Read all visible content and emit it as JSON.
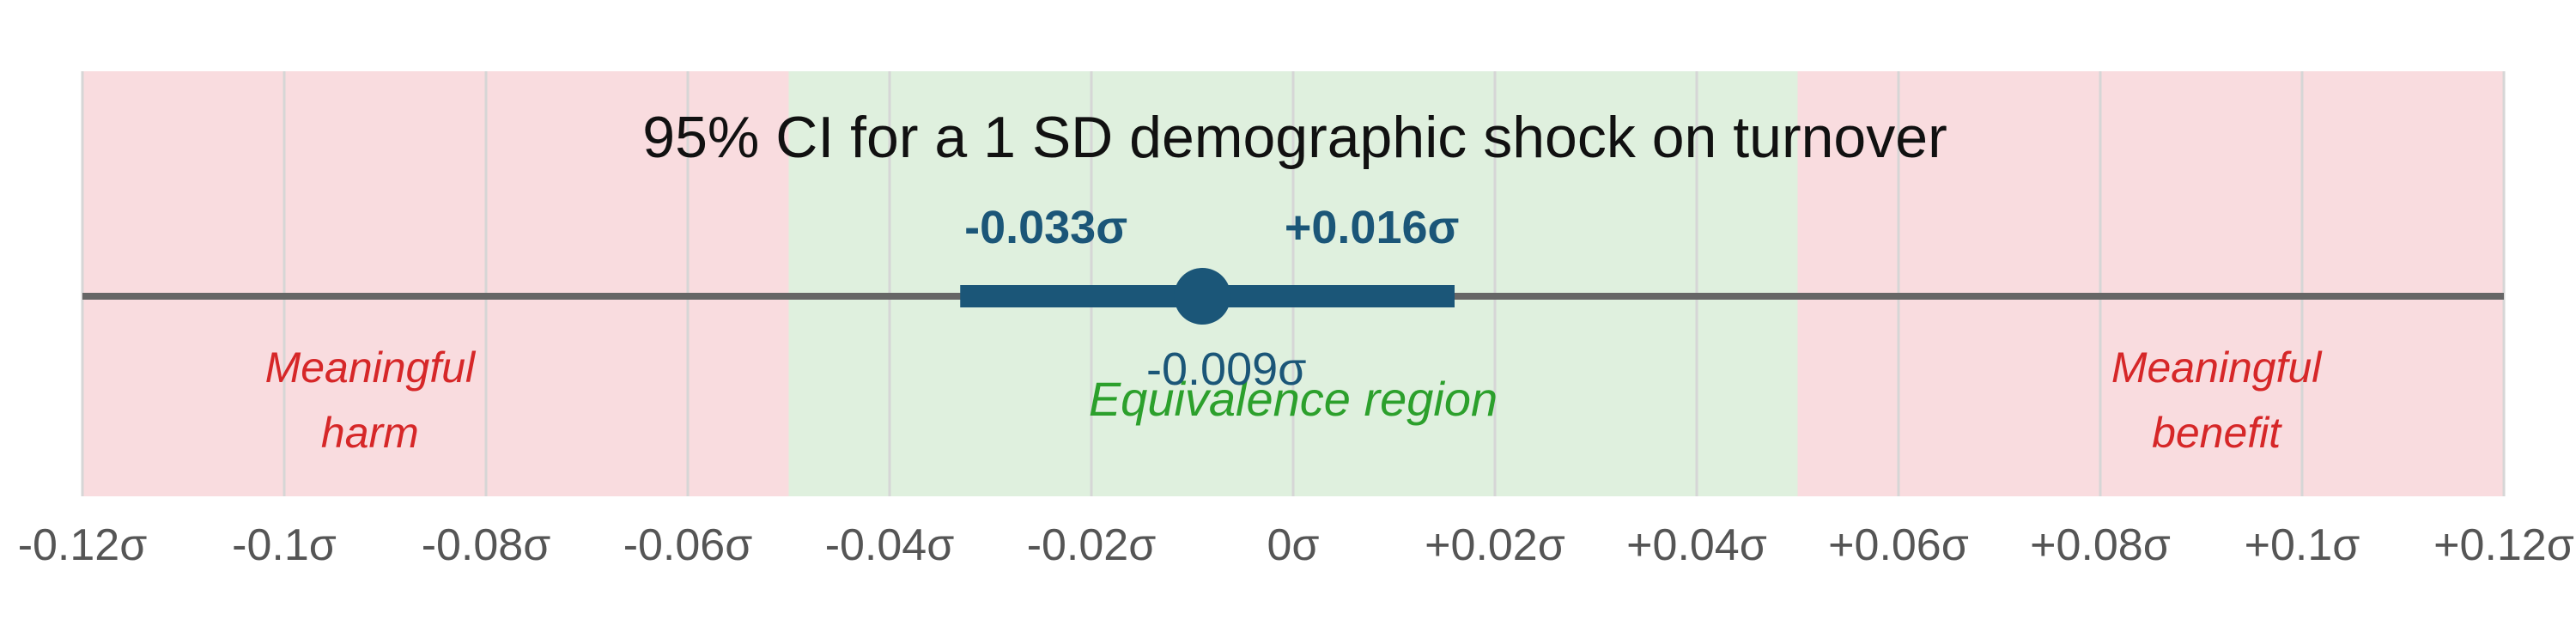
{
  "chart_data": {
    "type": "interval",
    "title": "95% CI for a 1 SD demographic shock on turnover",
    "xlim": [
      -0.12,
      0.12
    ],
    "x_ticks": [
      -0.12,
      -0.1,
      -0.08,
      -0.06,
      -0.04,
      -0.02,
      0,
      0.02,
      0.04,
      0.06,
      0.08,
      0.1,
      0.12
    ],
    "x_tick_labels": [
      "-0.12σ",
      "-0.1σ",
      "-0.08σ",
      "-0.06σ",
      "-0.04σ",
      "-0.02σ",
      "0σ",
      "+0.02σ",
      "+0.04σ",
      "+0.06σ",
      "+0.08σ",
      "+0.1σ",
      "+0.12σ"
    ],
    "regions": [
      {
        "kind": "harm",
        "range": [
          -0.12,
          -0.05
        ],
        "label_lines": [
          "Meaningful",
          "harm"
        ],
        "color": "#f9dcdf",
        "label_color": "#d62728"
      },
      {
        "kind": "equivalence",
        "range": [
          -0.05,
          0.05
        ],
        "label_lines": [
          "Equivalence region"
        ],
        "color": "#dff0de",
        "label_color": "#2ca02c"
      },
      {
        "kind": "benefit",
        "range": [
          0.05,
          0.12
        ],
        "label_lines": [
          "Meaningful",
          "benefit"
        ],
        "color": "#f9dcdf",
        "label_color": "#d62728"
      }
    ],
    "estimate": {
      "value": -0.009,
      "label": "-0.009σ"
    },
    "ci": {
      "lower": -0.033,
      "upper": 0.016,
      "lower_label": "-0.033σ",
      "upper_label": "+0.016σ"
    },
    "colors": {
      "estimate": "#1b5678",
      "axis_line": "#666666",
      "grid": "#d6d6d6"
    },
    "grid": true
  }
}
